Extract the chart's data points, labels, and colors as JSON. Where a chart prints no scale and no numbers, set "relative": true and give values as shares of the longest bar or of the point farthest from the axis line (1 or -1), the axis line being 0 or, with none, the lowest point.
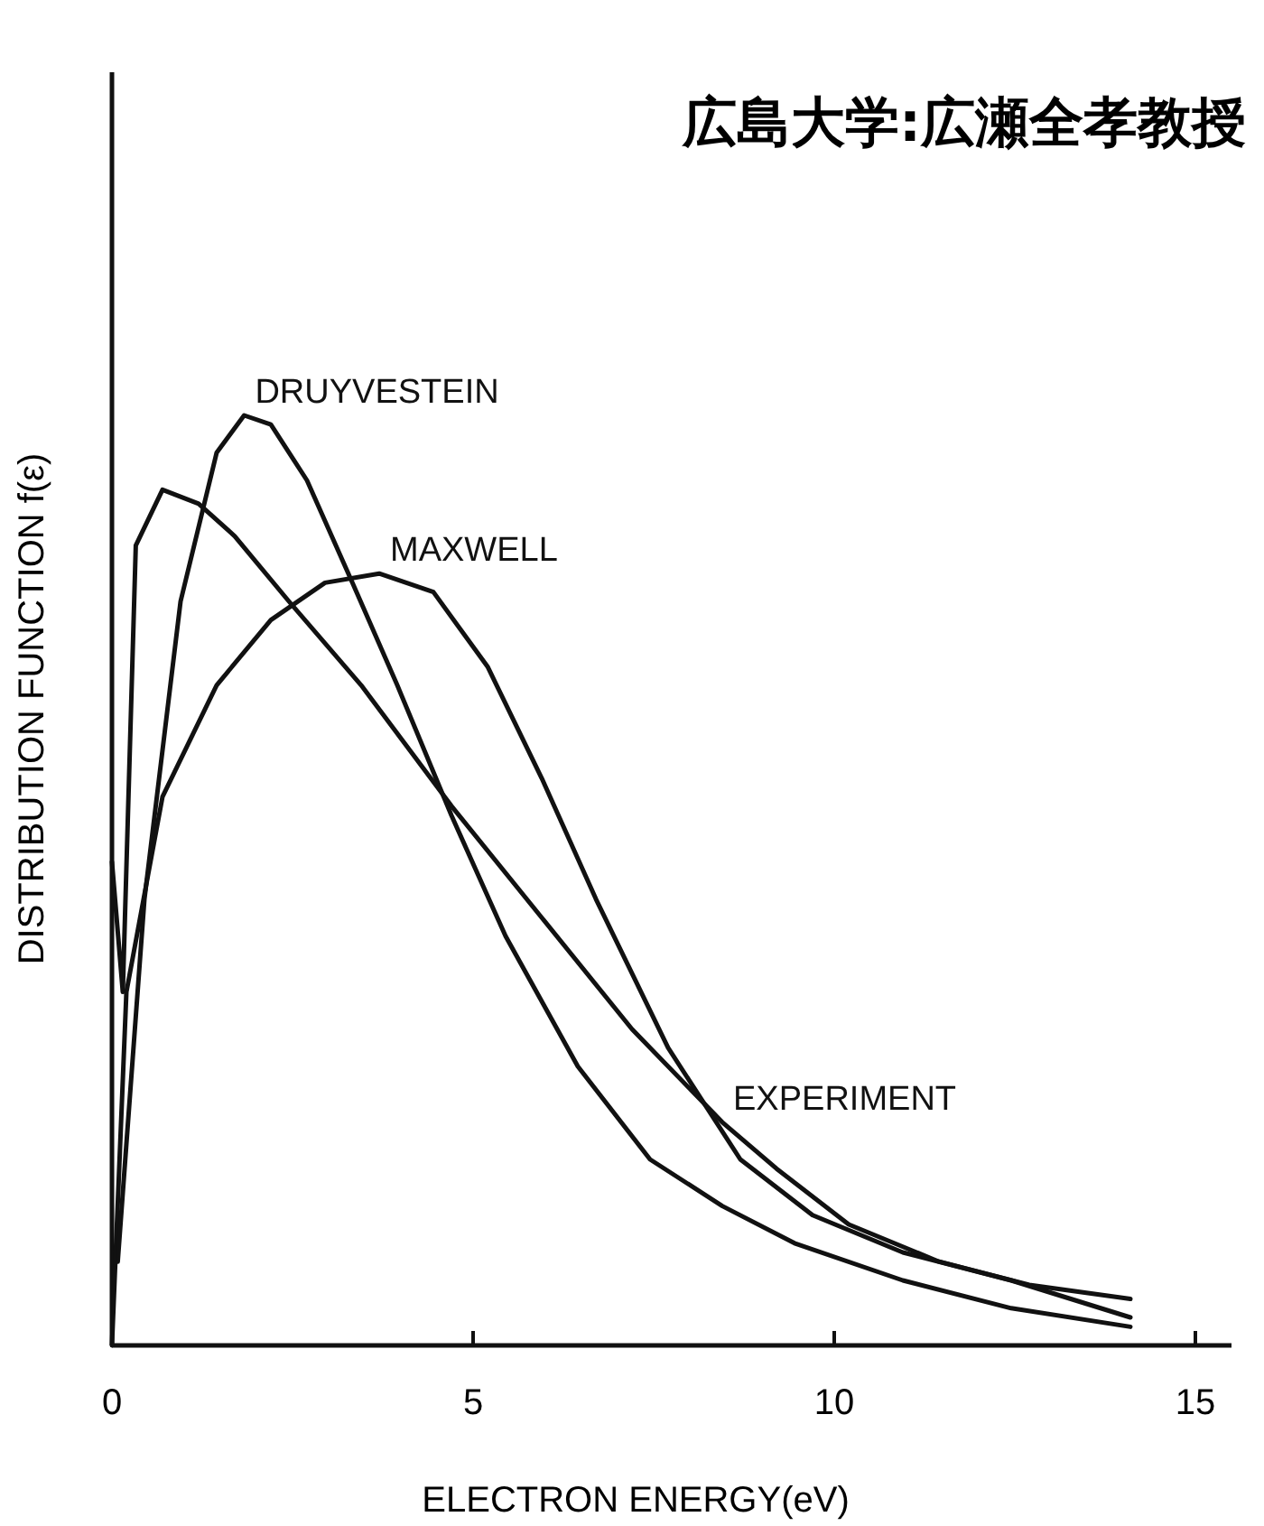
{
  "chart_data": {
    "type": "line",
    "relative": true,
    "xlabel": "ELECTRON ENERGY(eV)",
    "ylabel": "DISTRIBUTION FUNCTION f(ε)",
    "annotations": [
      "広島大学:広瀬全孝教授"
    ],
    "xlim": [
      0,
      15.5
    ],
    "xticks": [
      0,
      5,
      10,
      15
    ],
    "tick_labels": "x",
    "grid": false,
    "line_style": "solid",
    "series": [
      {
        "name": "MAXWELL",
        "color": "#111111",
        "x": [
          0,
          0.2,
          0.7,
          1.45,
          2.2,
          2.95,
          3.7,
          4.45,
          5.2,
          5.95,
          6.7,
          7.7,
          8.7,
          9.7,
          10.95,
          12.45,
          14.1
        ],
        "values": [
          0,
          0.38,
          0.59,
          0.71,
          0.78,
          0.82,
          0.83,
          0.81,
          0.73,
          0.61,
          0.48,
          0.32,
          0.2,
          0.14,
          0.1,
          0.07,
          0.03
        ]
      },
      {
        "name": "DRUYVESTEIN",
        "color": "#111111",
        "x": [
          0.08,
          0.45,
          0.95,
          1.45,
          1.83,
          2.2,
          2.7,
          3.33,
          3.95,
          4.7,
          5.45,
          6.45,
          7.45,
          8.45,
          9.45,
          10.95,
          12.45,
          14.1
        ],
        "values": [
          0.09,
          0.48,
          0.8,
          0.96,
          1,
          0.99,
          0.93,
          0.82,
          0.71,
          0.57,
          0.44,
          0.3,
          0.2,
          0.15,
          0.11,
          0.07,
          0.04,
          0.02
        ]
      },
      {
        "name": "EXPERIMENT",
        "color": "#111111",
        "x": [
          0,
          0.15,
          0.33,
          0.7,
          1.2,
          1.7,
          2.45,
          3.45,
          4.7,
          5.95,
          7.2,
          8.45,
          9.2,
          10.2,
          11.45,
          12.7,
          14.1
        ],
        "values": [
          0.52,
          0.38,
          0.86,
          0.92,
          0.905,
          0.87,
          0.8,
          0.71,
          0.58,
          0.46,
          0.34,
          0.24,
          0.19,
          0.13,
          0.09,
          0.065,
          0.05
        ]
      }
    ]
  }
}
